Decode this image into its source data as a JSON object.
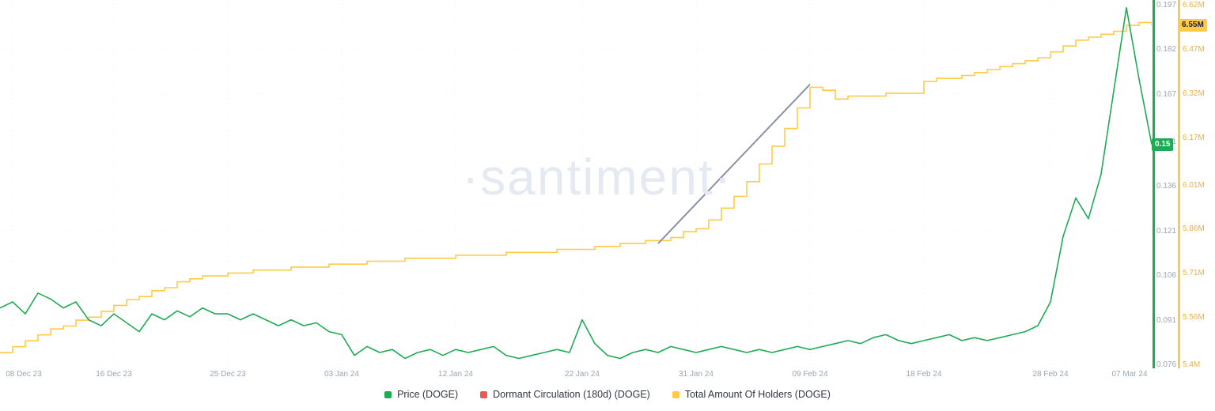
{
  "watermark": "·santiment·",
  "colors": {
    "price": "#1fab54",
    "holders_line": "#ffcb47",
    "holders_label": "#edb239",
    "dormant": "#eb5757",
    "trend": "#8a91a5",
    "axis_text": "#9aa6b3"
  },
  "badges": {
    "price": {
      "text": "0.15",
      "value": 0.15
    },
    "holders": {
      "text": "6.55M",
      "value": 6.55
    }
  },
  "legend": [
    {
      "label": "Price (DOGE)",
      "color": "#1fab54"
    },
    {
      "label": "Dormant Circulation (180d) (DOGE)",
      "color": "#eb5757"
    },
    {
      "label": "Total Amount Of Holders (DOGE)",
      "color": "#ffcb47"
    }
  ],
  "chart_data": {
    "type": "line",
    "title": "",
    "x_start": "07 Dec 23",
    "x_end": "07 Mar 24",
    "x_tick_labels": [
      "08 Dec 23",
      "16 Dec 23",
      "25 Dec 23",
      "03 Jan 24",
      "12 Jan 24",
      "22 Jan 24",
      "31 Jan 24",
      "09 Feb 24",
      "18 Feb 24",
      "28 Feb 24",
      "07 Mar 24"
    ],
    "x_tick_indices": [
      1,
      9,
      18,
      27,
      36,
      46,
      55,
      64,
      73,
      83,
      91
    ],
    "grid": true,
    "legend_position": "bottom",
    "axes": {
      "price": {
        "range": [
          0.076,
          0.197
        ],
        "ticks": [
          "0.197",
          "0.182",
          "0.167",
          "0.151",
          "0.136",
          "0.121",
          "0.106",
          "0.091",
          "0.076"
        ],
        "tick_values": [
          0.197,
          0.182,
          0.167,
          0.151,
          0.136,
          0.121,
          0.106,
          0.091,
          0.076
        ]
      },
      "holders": {
        "range": [
          5.4,
          6.62
        ],
        "ticks": [
          "6.62M",
          "6.47M",
          "6.32M",
          "6.17M",
          "6.01M",
          "5.86M",
          "5.71M",
          "5.56M",
          "5.4M"
        ],
        "tick_values": [
          6.62,
          6.47,
          6.32,
          6.17,
          6.01,
          5.86,
          5.71,
          5.56,
          5.4
        ]
      }
    },
    "series": [
      {
        "name": "Price (DOGE)",
        "axis": "price",
        "style": "line",
        "color": "#1fab54",
        "values": [
          0.095,
          0.097,
          0.093,
          0.1,
          0.098,
          0.095,
          0.097,
          0.091,
          0.089,
          0.093,
          0.09,
          0.087,
          0.093,
          0.091,
          0.094,
          0.092,
          0.095,
          0.093,
          0.093,
          0.091,
          0.093,
          0.091,
          0.089,
          0.091,
          0.089,
          0.09,
          0.087,
          0.086,
          0.079,
          0.082,
          0.08,
          0.081,
          0.078,
          0.08,
          0.081,
          0.079,
          0.081,
          0.08,
          0.081,
          0.082,
          0.079,
          0.078,
          0.079,
          0.08,
          0.081,
          0.08,
          0.091,
          0.083,
          0.079,
          0.078,
          0.08,
          0.081,
          0.08,
          0.082,
          0.081,
          0.08,
          0.081,
          0.082,
          0.081,
          0.08,
          0.081,
          0.08,
          0.081,
          0.082,
          0.081,
          0.082,
          0.083,
          0.084,
          0.083,
          0.085,
          0.086,
          0.084,
          0.083,
          0.084,
          0.085,
          0.086,
          0.084,
          0.085,
          0.084,
          0.085,
          0.086,
          0.087,
          0.089,
          0.097,
          0.119,
          0.132,
          0.125,
          0.14,
          0.168,
          0.196,
          0.172,
          0.15
        ]
      },
      {
        "name": "Dormant Circulation (180d) (DOGE)",
        "axis": "price",
        "style": "line",
        "color": "#eb5757",
        "values": []
      },
      {
        "name": "Total Amount Of Holders (DOGE)",
        "axis": "holders",
        "style": "step",
        "color": "#ffcb47",
        "values": [
          5.44,
          5.46,
          5.48,
          5.5,
          5.52,
          5.53,
          5.55,
          5.56,
          5.58,
          5.6,
          5.62,
          5.63,
          5.65,
          5.66,
          5.68,
          5.69,
          5.7,
          5.7,
          5.71,
          5.71,
          5.72,
          5.72,
          5.72,
          5.73,
          5.73,
          5.73,
          5.74,
          5.74,
          5.74,
          5.75,
          5.75,
          5.75,
          5.76,
          5.76,
          5.76,
          5.76,
          5.77,
          5.77,
          5.77,
          5.77,
          5.78,
          5.78,
          5.78,
          5.78,
          5.79,
          5.79,
          5.79,
          5.8,
          5.8,
          5.81,
          5.81,
          5.82,
          5.82,
          5.83,
          5.85,
          5.86,
          5.89,
          5.93,
          5.97,
          6.02,
          6.08,
          6.14,
          6.2,
          6.27,
          6.34,
          6.33,
          6.3,
          6.31,
          6.31,
          6.31,
          6.32,
          6.32,
          6.32,
          6.36,
          6.37,
          6.37,
          6.38,
          6.39,
          6.4,
          6.41,
          6.42,
          6.43,
          6.44,
          6.46,
          6.48,
          6.5,
          6.51,
          6.52,
          6.53,
          6.55,
          6.56,
          6.55
        ]
      }
    ],
    "annotations": [
      {
        "type": "trend-line",
        "axis": "holders",
        "from_index": 52,
        "from_value": 5.81,
        "to_index": 64,
        "to_value": 6.35,
        "color": "#8a91a5"
      }
    ]
  }
}
